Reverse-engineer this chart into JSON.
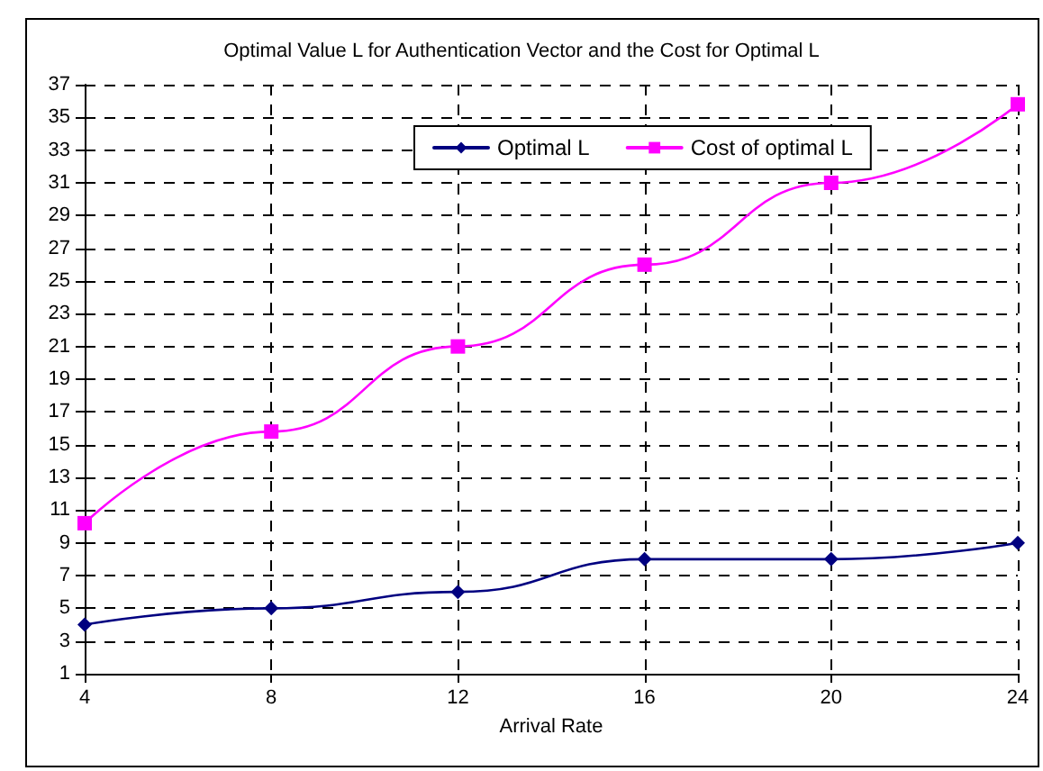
{
  "chart_data": {
    "type": "line",
    "title": "Optimal Value L for Authentication Vector and the Cost for Optimal L",
    "xlabel": "Arrival Rate",
    "x": [
      4,
      8,
      12,
      16,
      20,
      24
    ],
    "series": [
      {
        "name": "Optimal L",
        "color": "#000080",
        "marker": "diamond",
        "values": [
          4,
          5,
          6,
          8,
          8,
          9
        ]
      },
      {
        "name": "Cost of optimal L",
        "color": "#ff00ff",
        "marker": "square",
        "values": [
          10.2,
          15.8,
          21,
          26,
          31,
          35.8
        ]
      }
    ],
    "xlim": [
      4,
      24
    ],
    "xticks": [
      4,
      8,
      12,
      16,
      20,
      24
    ],
    "ylim": [
      1,
      37
    ],
    "yticks": [
      1,
      3,
      5,
      7,
      9,
      11,
      13,
      15,
      17,
      19,
      21,
      23,
      25,
      27,
      29,
      31,
      33,
      35,
      37
    ],
    "grid": true,
    "legend": "top right",
    "line_style": "solid"
  }
}
